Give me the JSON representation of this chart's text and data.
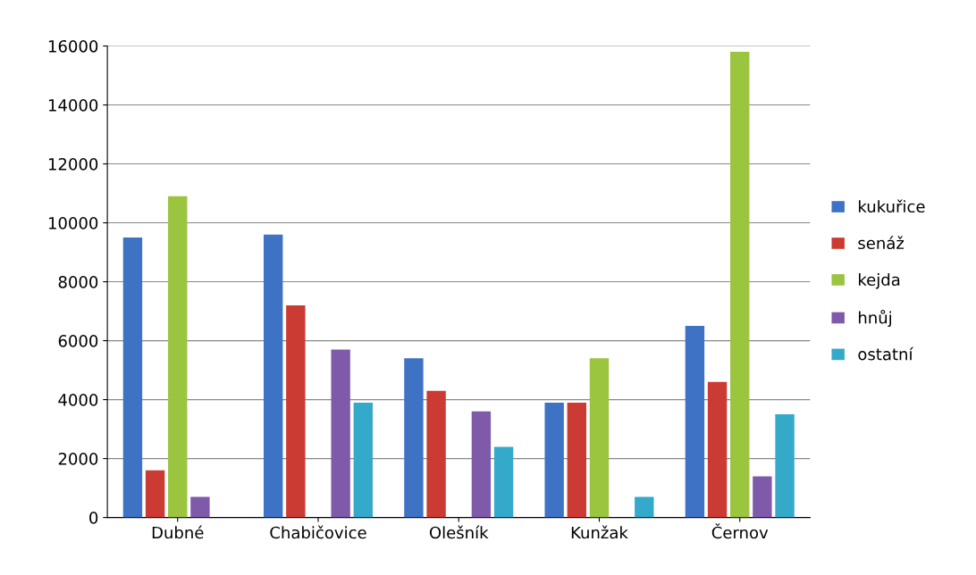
{
  "chart_data": {
    "type": "bar",
    "categories": [
      "Dubné",
      "Chabičovice",
      "Olešník",
      "Kunžak",
      "Černov"
    ],
    "series": [
      {
        "name": "kukuřice",
        "color": "#3d72c4",
        "values": [
          9500,
          9600,
          5400,
          3900,
          6500
        ]
      },
      {
        "name": "senáž",
        "color": "#cc3b33",
        "values": [
          1600,
          7200,
          4300,
          3900,
          4600
        ]
      },
      {
        "name": "kejda",
        "color": "#9bc43f",
        "values": [
          10900,
          0,
          0,
          5400,
          15800
        ]
      },
      {
        "name": "hnůj",
        "color": "#7f5aab",
        "values": [
          700,
          5700,
          3600,
          0,
          1400
        ]
      },
      {
        "name": "ostatní",
        "color": "#35a9c9",
        "values": [
          0,
          3900,
          2400,
          700,
          3500
        ]
      }
    ],
    "ylim": [
      0,
      16000
    ],
    "yticks": [
      0,
      2000,
      4000,
      6000,
      8000,
      10000,
      12000,
      14000,
      16000
    ],
    "grid": "y",
    "legend": "right"
  }
}
